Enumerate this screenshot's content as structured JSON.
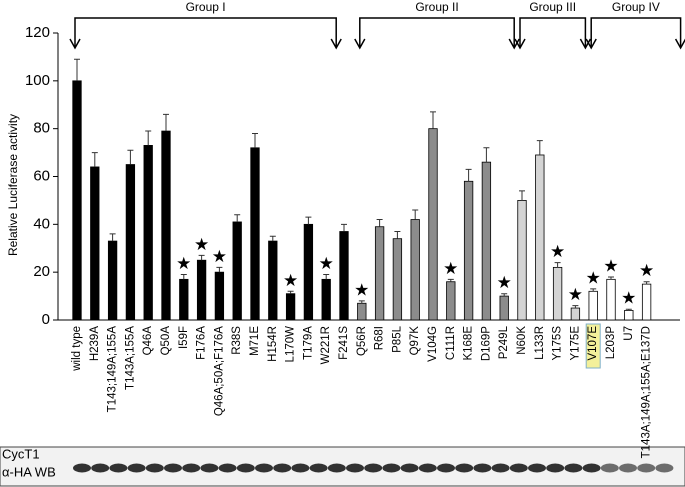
{
  "chart_data": {
    "type": "bar",
    "y_label": "Relative Luciferase activity",
    "categories": [
      "wild type",
      "H239A",
      "T143;149A;155A",
      "T143A;155A",
      "Q46A",
      "Q50A",
      "I59F",
      "F176A",
      "Q46A;50A;F176A",
      "R38S",
      "M71E",
      "H154R",
      "L170W",
      "T179A",
      "W221R",
      "F241S",
      "Q56R",
      "R68I",
      "P85L",
      "Q97K",
      "V104G",
      "C111R",
      "K168E",
      "D169P",
      "P249L",
      "N60K",
      "L133R",
      "Y175S",
      "Y175E",
      "V107E",
      "L203P",
      "U7",
      "T143A;149A;155A;E137D"
    ],
    "values": [
      100,
      64,
      33,
      65,
      73,
      79,
      17,
      25,
      20,
      41,
      72,
      33,
      11,
      40,
      17,
      37,
      7,
      39,
      34,
      42,
      80,
      16,
      58,
      66,
      10,
      50,
      69,
      22,
      5,
      12,
      17,
      4,
      15
    ],
    "errors": [
      9,
      6,
      3,
      6,
      6,
      7,
      2,
      2,
      2,
      3,
      6,
      2,
      1,
      3,
      2,
      3,
      1,
      3,
      3,
      4,
      7,
      1,
      5,
      6,
      1,
      4,
      6,
      2,
      1,
      1,
      1,
      0.5,
      1
    ],
    "significant": [
      false,
      false,
      false,
      false,
      false,
      false,
      true,
      true,
      true,
      false,
      false,
      false,
      true,
      false,
      true,
      false,
      true,
      false,
      false,
      false,
      false,
      true,
      false,
      false,
      true,
      false,
      false,
      true,
      true,
      true,
      true,
      true,
      true
    ],
    "significance_marker": "★",
    "highlight_index": 29,
    "highlight_color": "#f3f09a",
    "groups": [
      {
        "label": "Group I",
        "start": 0,
        "end": 14,
        "color": "#000000"
      },
      {
        "label": "Group II",
        "start": 16,
        "end": 24,
        "color": "#8c8c8c"
      },
      {
        "label": "Group III",
        "start": 25,
        "end": 28,
        "color": "#d4d4d4"
      },
      {
        "label": "Group IV",
        "start": 29,
        "end": 32,
        "color": "#ffffff"
      }
    ],
    "ylim": [
      0,
      120
    ],
    "yticks": [
      0,
      20,
      40,
      60,
      80,
      100,
      120
    ],
    "blot_labels": [
      "CycT1",
      "α-HA WB"
    ]
  }
}
